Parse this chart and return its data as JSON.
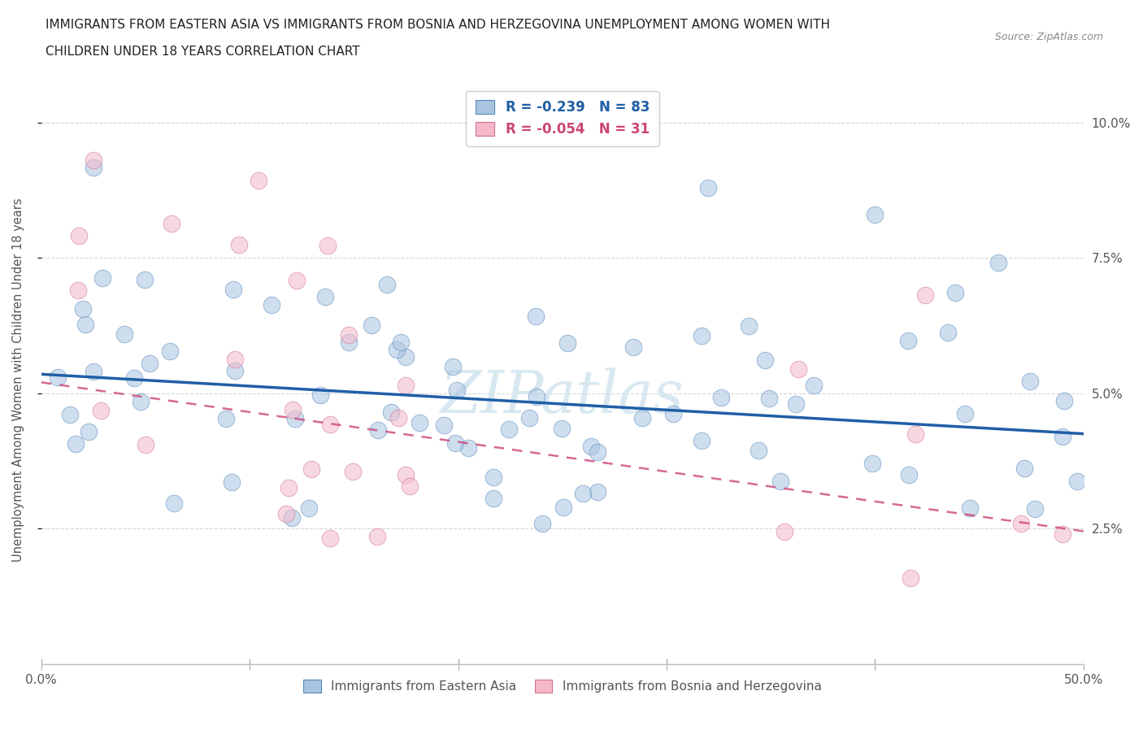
{
  "title_line1": "IMMIGRANTS FROM EASTERN ASIA VS IMMIGRANTS FROM BOSNIA AND HERZEGOVINA UNEMPLOYMENT AMONG WOMEN WITH",
  "title_line2": "CHILDREN UNDER 18 YEARS CORRELATION CHART",
  "source": "Source: ZipAtlas.com",
  "ylabel": "Unemployment Among Women with Children Under 18 years",
  "xlim": [
    0.0,
    0.5
  ],
  "ylim": [
    0.0,
    0.105
  ],
  "blue_color": "#a8c4e0",
  "blue_edge_color": "#5588bb",
  "blue_line_color": "#1f5fa6",
  "pink_color": "#f4b8c8",
  "pink_edge_color": "#d07090",
  "pink_line_color": "#cc4477",
  "watermark_color": "#d8e8f0",
  "watermark_text": "ZIPatlas",
  "legend_R_blue": "-0.239",
  "legend_N_blue": "83",
  "legend_R_pink": "-0.054",
  "legend_N_pink": "31",
  "blue_label": "Immigrants from Eastern Asia",
  "pink_label": "Immigrants from Bosnia and Herzegovina",
  "grid_color": "#cccccc",
  "background_color": "#ffffff",
  "blue_intercept": 0.0535,
  "blue_slope": -0.022,
  "pink_intercept": 0.052,
  "pink_slope": -0.055,
  "marker_size": 220,
  "marker_alpha": 0.55,
  "seed": 17
}
